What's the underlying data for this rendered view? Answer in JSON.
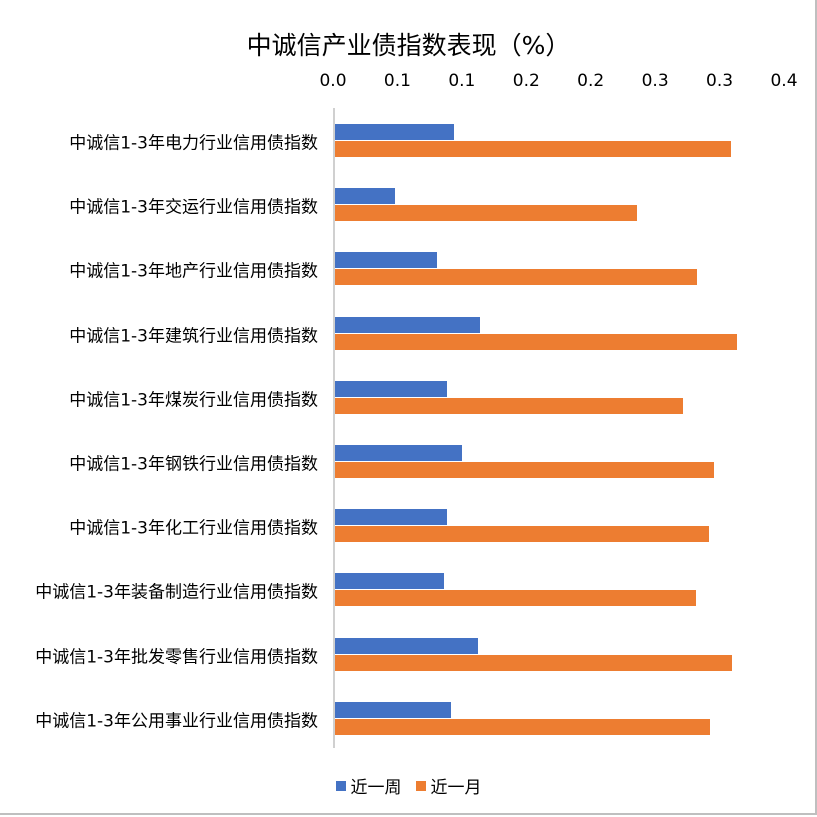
{
  "chart_data": {
    "type": "bar",
    "orientation": "horizontal",
    "title": "中诚信产业债指数表现（%）",
    "xlabel": "",
    "ylabel": "",
    "xlim": [
      0,
      0.35
    ],
    "x_ticks": [
      "0.0",
      "0.1",
      "0.1",
      "0.2",
      "0.2",
      "0.3",
      "0.3",
      "0.4"
    ],
    "x_tick_values": [
      0,
      0.05,
      0.1,
      0.15,
      0.2,
      0.25,
      0.3,
      0.35
    ],
    "x_axis_position": "top",
    "grid": false,
    "legend_position": "bottom",
    "categories": [
      "中诚信1-3年电力行业信用债指数",
      "中诚信1-3年交运行业信用债指数",
      "中诚信1-3年地产行业信用债指数",
      "中诚信1-3年建筑行业信用债指数",
      "中诚信1-3年煤炭行业信用债指数",
      "中诚信1-3年钢铁行业信用债指数",
      "中诚信1-3年化工行业信用债指数",
      "中诚信1-3年装备制造行业信用债指数",
      "中诚信1-3年批发零售行业信用债指数",
      "中诚信1-3年公用事业行业信用债指数"
    ],
    "series": [
      {
        "name": "近一周",
        "color": "#4472c4",
        "values": [
          0.093,
          0.047,
          0.08,
          0.113,
          0.088,
          0.099,
          0.088,
          0.085,
          0.112,
          0.091
        ]
      },
      {
        "name": "近一月",
        "color": "#ed7d31",
        "values": [
          0.308,
          0.235,
          0.282,
          0.313,
          0.271,
          0.295,
          0.291,
          0.281,
          0.309,
          0.292
        ]
      }
    ]
  },
  "legend": {
    "week": "近一周",
    "month": "近一月"
  }
}
